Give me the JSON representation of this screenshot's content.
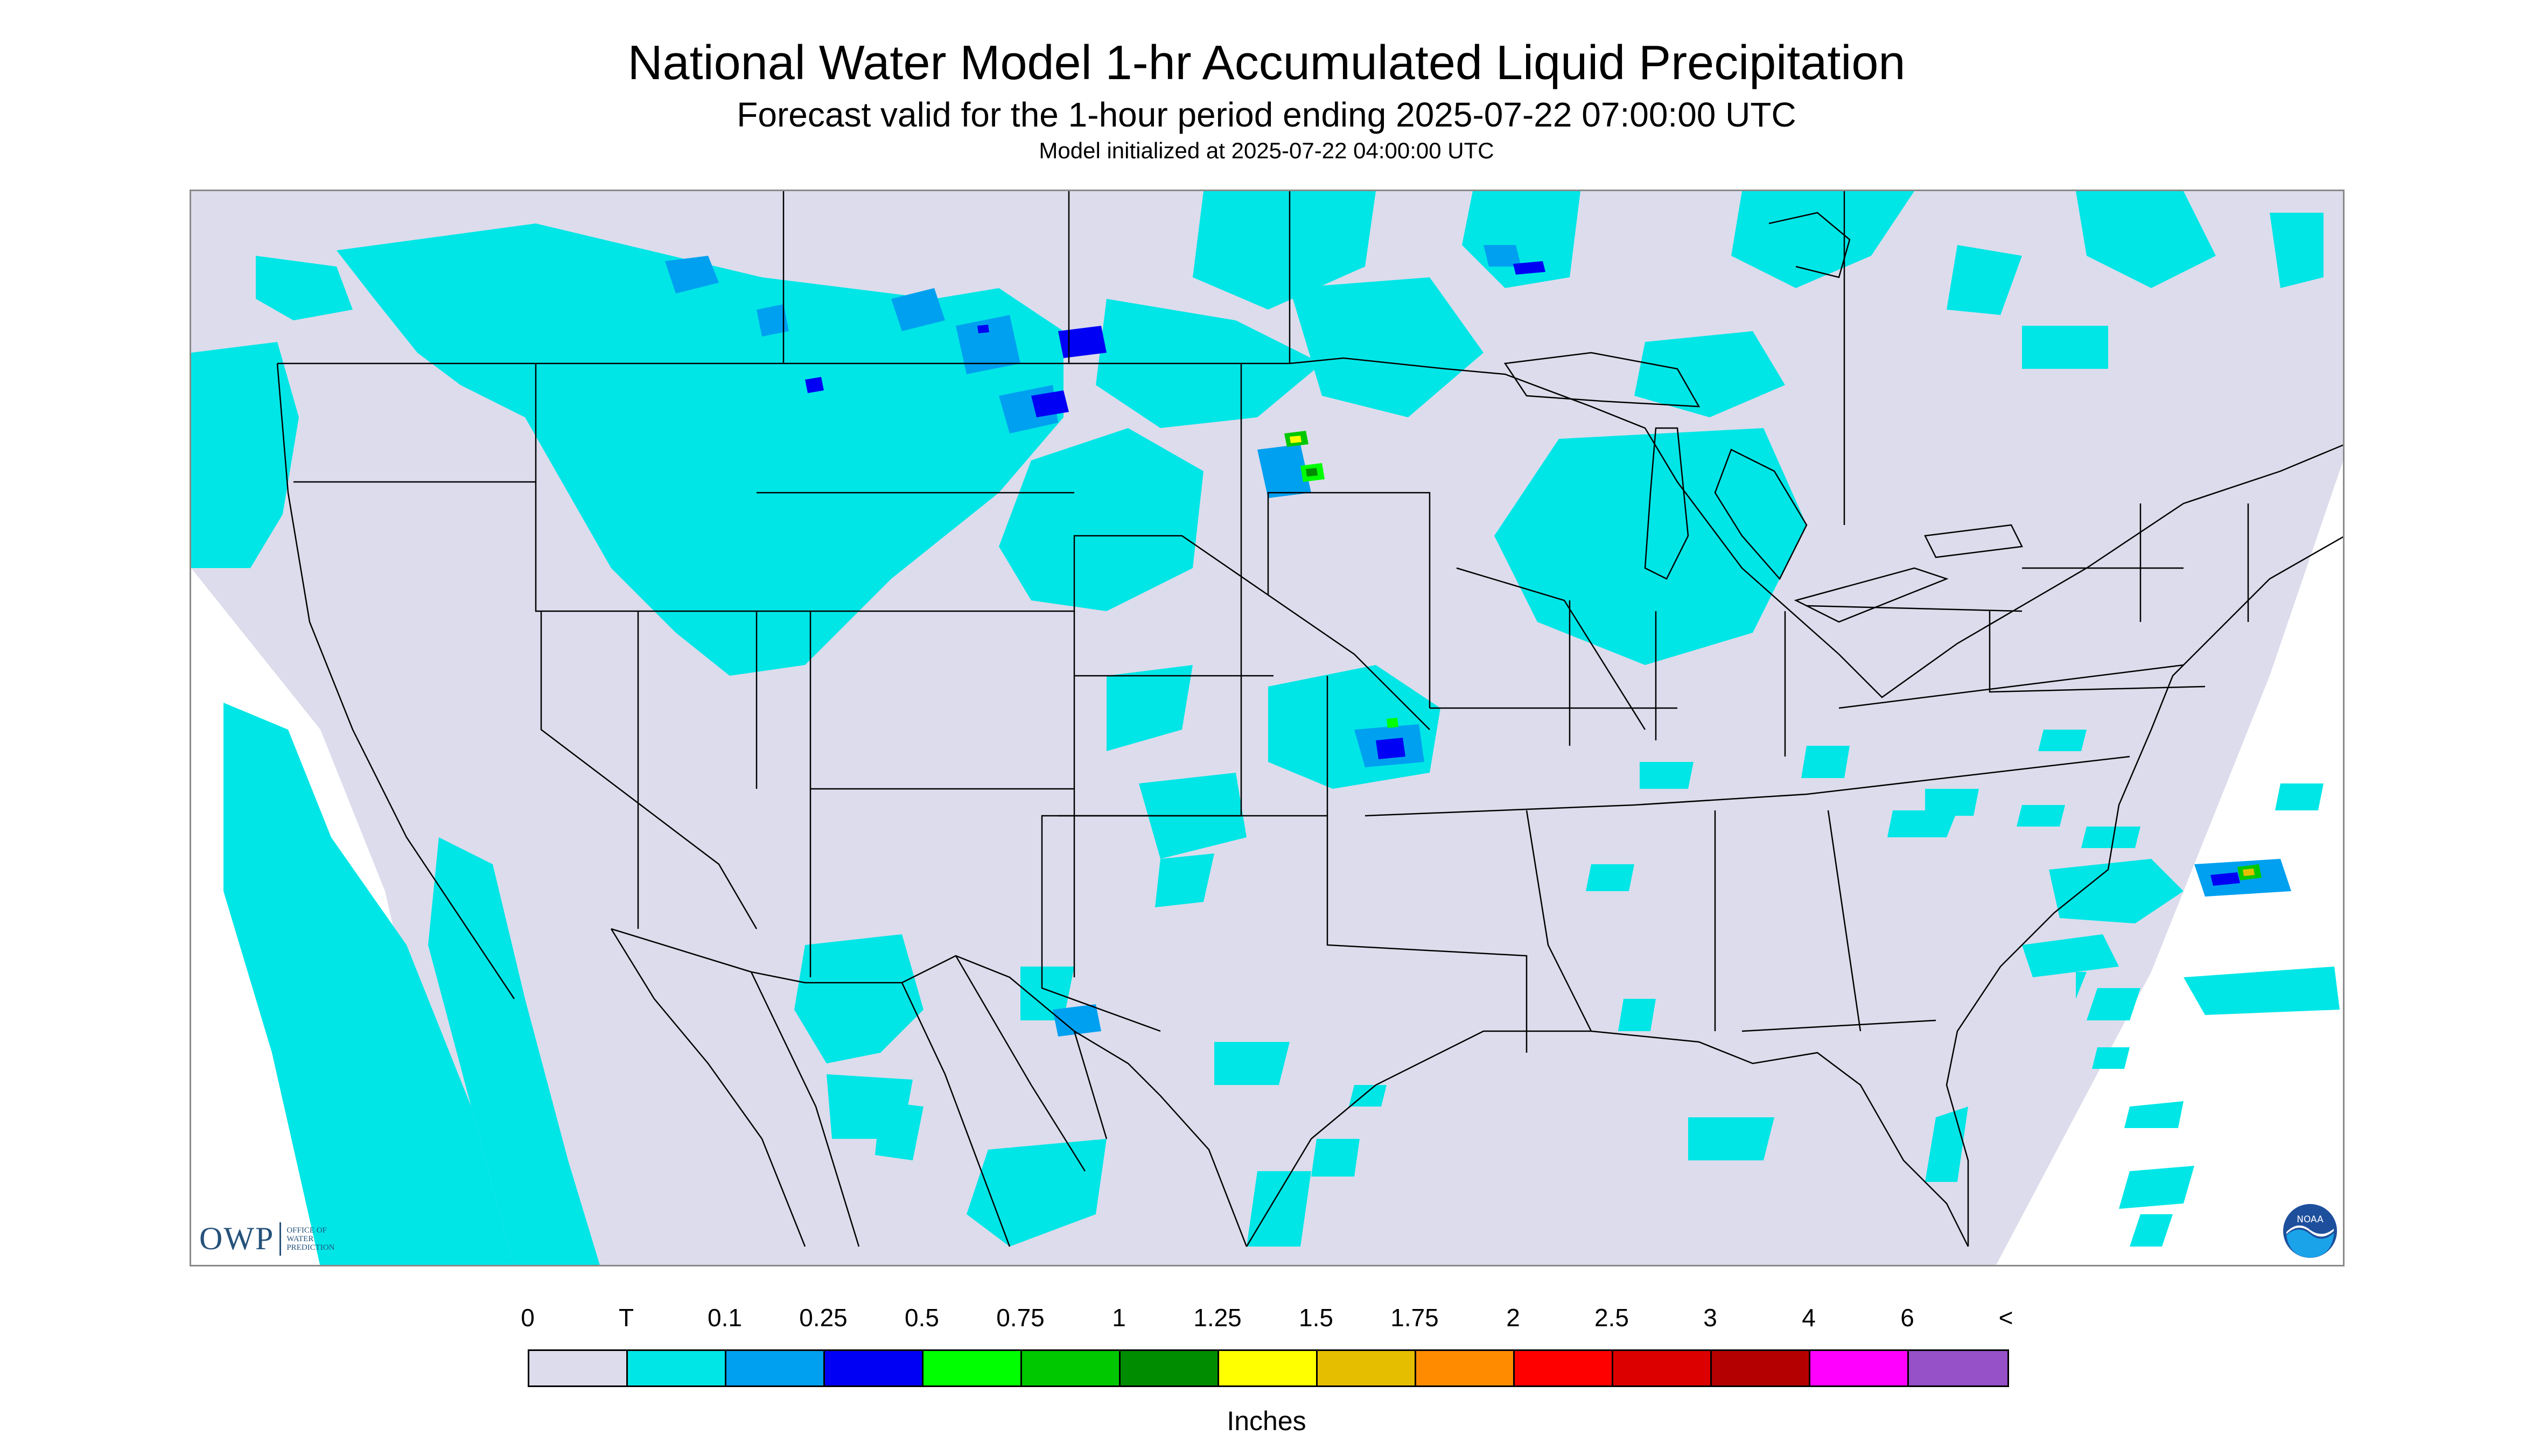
{
  "header": {
    "title": "National Water Model 1-hr Accumulated Liquid Precipitation",
    "subtitle": "Forecast valid for the 1-hour period ending 2025-07-22 07:00:00 UTC",
    "init": "Model initialized at 2025-07-22 04:00:00 UTC"
  },
  "logos": {
    "owp_mark": "OWP",
    "owp_text_1": "OFFICE OF",
    "owp_text_2": "WATER",
    "owp_text_3": "PREDICTION",
    "noaa": "NOAA"
  },
  "legend": {
    "units": "Inches",
    "labels": [
      "0",
      "T",
      "0.1",
      "0.25",
      "0.5",
      "0.75",
      "1",
      "1.25",
      "1.5",
      "1.75",
      "2",
      "2.5",
      "3",
      "4",
      "6",
      "<"
    ],
    "colors": [
      "#dcdcec",
      "#00e6e6",
      "#00a0f0",
      "#0000f5",
      "#00ff00",
      "#00c800",
      "#008c00",
      "#ffff00",
      "#e6be00",
      "#ff8c00",
      "#ff0000",
      "#dc0000",
      "#b40000",
      "#ff00ff",
      "#9650c8"
    ]
  },
  "colors": {
    "domain_background": "#dcdcec",
    "outside_domain": "#ffffff",
    "boundaries": "#000000"
  }
}
